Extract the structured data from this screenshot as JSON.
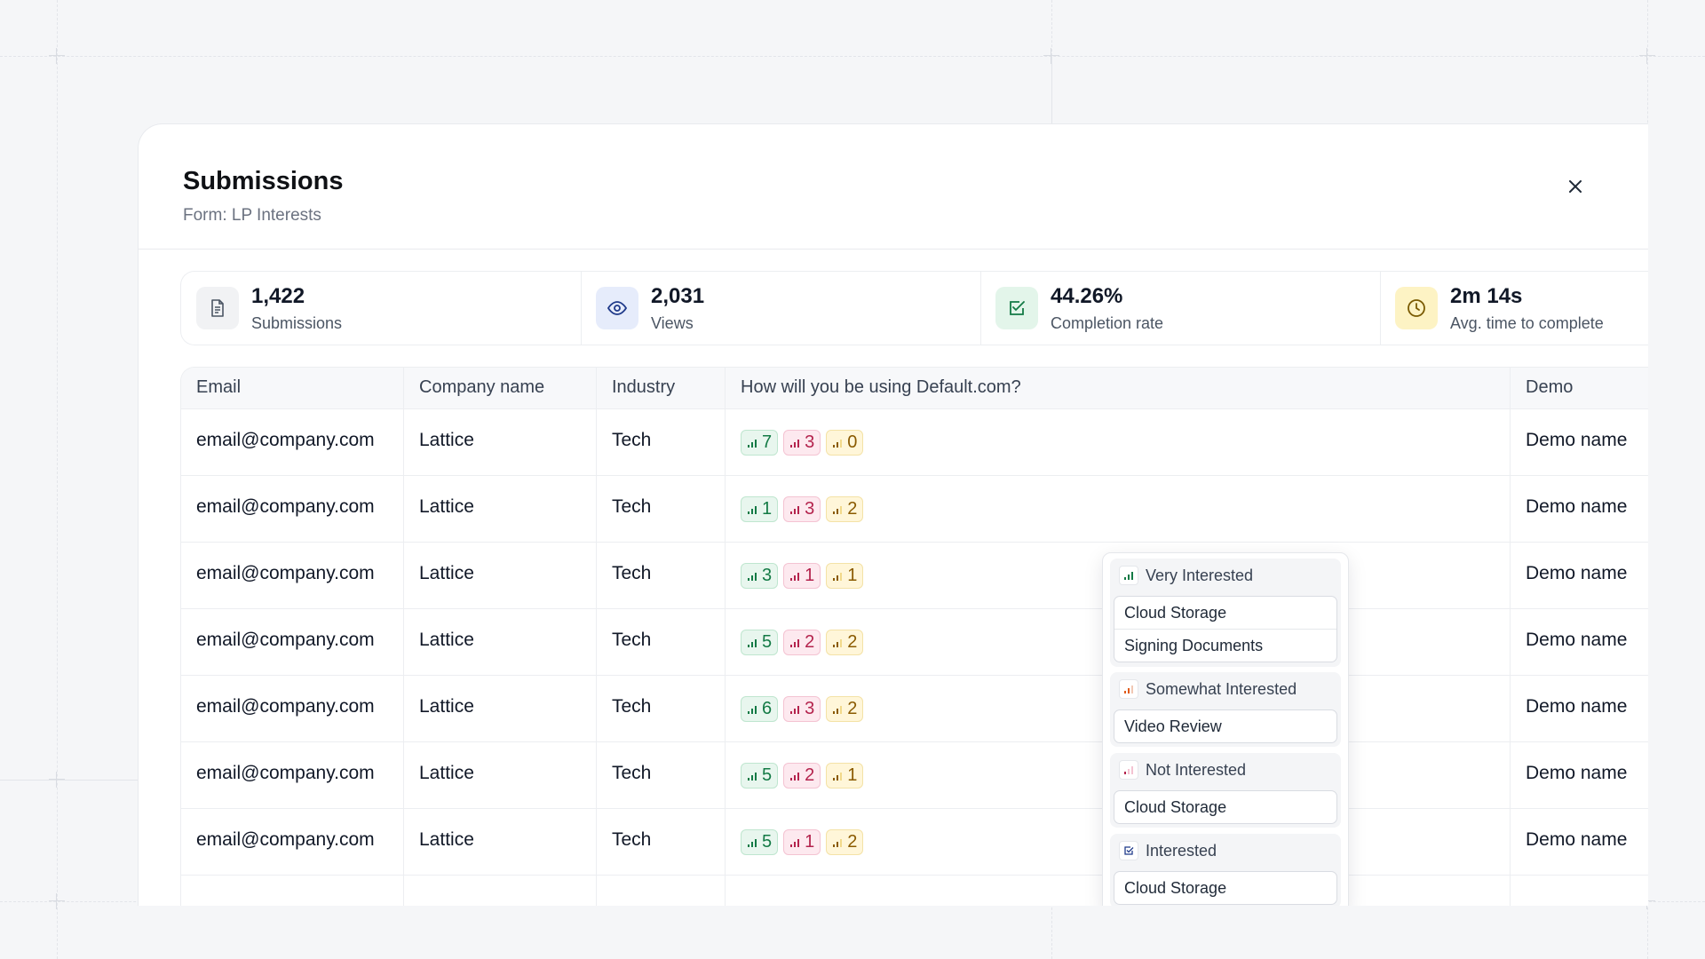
{
  "header": {
    "title": "Submissions",
    "subtitle": "Form: LP Interests"
  },
  "stats": [
    {
      "value": "1,422",
      "label": "Submissions",
      "icon": "document-icon"
    },
    {
      "value": "2,031",
      "label": "Views",
      "icon": "eye-icon"
    },
    {
      "value": "44.26%",
      "label": "Completion rate",
      "icon": "check-square-icon"
    },
    {
      "value": "2m 14s",
      "label": "Avg. time to complete",
      "icon": "clock-icon"
    }
  ],
  "table": {
    "columns": [
      "Email",
      "Company name",
      "Industry",
      "How will you be using Default.com?",
      "Demo"
    ],
    "rows": [
      {
        "email": "email@company.com",
        "company": "Lattice",
        "industry": "Tech",
        "green": "7",
        "red": "3",
        "yellow": "0",
        "demo": "Demo name"
      },
      {
        "email": "email@company.com",
        "company": "Lattice",
        "industry": "Tech",
        "green": "1",
        "red": "3",
        "yellow": "2",
        "demo": "Demo name"
      },
      {
        "email": "email@company.com",
        "company": "Lattice",
        "industry": "Tech",
        "green": "3",
        "red": "1",
        "yellow": "1",
        "demo": "Demo name"
      },
      {
        "email": "email@company.com",
        "company": "Lattice",
        "industry": "Tech",
        "green": "5",
        "red": "2",
        "yellow": "2",
        "demo": "Demo name"
      },
      {
        "email": "email@company.com",
        "company": "Lattice",
        "industry": "Tech",
        "green": "6",
        "red": "3",
        "yellow": "2",
        "demo": "Demo name"
      },
      {
        "email": "email@company.com",
        "company": "Lattice",
        "industry": "Tech",
        "green": "5",
        "red": "2",
        "yellow": "1",
        "demo": "Demo name"
      },
      {
        "email": "email@company.com",
        "company": "Lattice",
        "industry": "Tech",
        "green": "5",
        "red": "1",
        "yellow": "2",
        "demo": "Demo name"
      }
    ]
  },
  "popover": {
    "groups": [
      {
        "label": "Very Interested",
        "items": [
          "Cloud Storage",
          "Signing Documents"
        ]
      },
      {
        "label": "Somewhat Interested",
        "items": [
          "Video Review"
        ]
      },
      {
        "label": "Not Interested",
        "items": [
          "Cloud Storage"
        ]
      },
      {
        "label": "Interested",
        "items": [
          "Cloud Storage"
        ]
      }
    ]
  },
  "colors": {
    "green": "#137a45",
    "red": "#b4234d",
    "yellow": "#8a5a00",
    "views_icon": "#1f3a8a",
    "completion_icon": "#137a45",
    "time_icon": "#7a5a00"
  }
}
